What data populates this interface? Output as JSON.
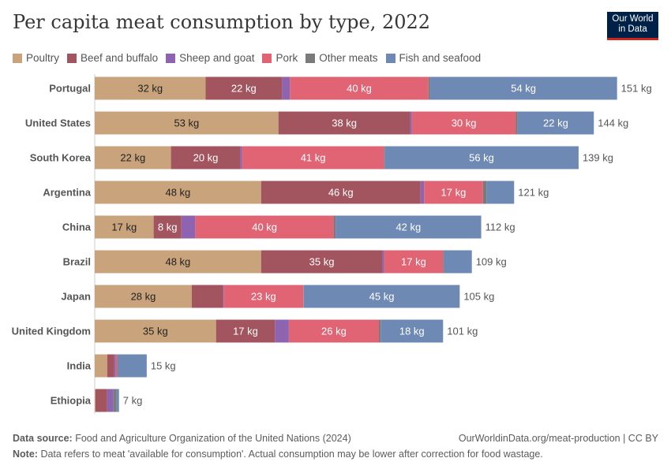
{
  "title": "Per capita meat consumption by type, 2022",
  "logo": {
    "line1": "Our World",
    "line2": "in Data"
  },
  "footer": {
    "source_label": "Data source:",
    "source": "Food and Agriculture Organization of the United Nations (2024)",
    "url": "OurWorldinData.org/meat-production | CC BY",
    "note_label": "Note:",
    "note": "Data refers to meat 'available for consumption'. Actual consumption may be lower after correction for food wastage."
  },
  "chart_data": {
    "type": "bar",
    "orientation": "horizontal",
    "stacked": true,
    "unit": "kg",
    "xlim": [
      0,
      151
    ],
    "legend_position": "top",
    "series": [
      {
        "name": "Poultry",
        "color": "#c9a37b"
      },
      {
        "name": "Beef and buffalo",
        "color": "#a2555e"
      },
      {
        "name": "Sheep and goat",
        "color": "#8e63b0"
      },
      {
        "name": "Pork",
        "color": "#e06474"
      },
      {
        "name": "Other meats",
        "color": "#7a7a7a"
      },
      {
        "name": "Fish and seafood",
        "color": "#6e89b4"
      }
    ],
    "categories": [
      "Portugal",
      "United States",
      "South Korea",
      "Argentina",
      "China",
      "Brazil",
      "Japan",
      "United Kingdom",
      "India",
      "Ethiopia"
    ],
    "values": [
      [
        32,
        22,
        2.3,
        40,
        0.4,
        54
      ],
      [
        53,
        38,
        0.5,
        30,
        0.5,
        22
      ],
      [
        22,
        20,
        0.5,
        41,
        0.1,
        56
      ],
      [
        48,
        46,
        1,
        17,
        1,
        8
      ],
      [
        17,
        8,
        4,
        40,
        0.5,
        42
      ],
      [
        48,
        35,
        0.5,
        17,
        0.3,
        8
      ],
      [
        28,
        9,
        0.2,
        23,
        0.1,
        45
      ],
      [
        35,
        17,
        4,
        26,
        0.5,
        18
      ],
      [
        3.6,
        2,
        0.5,
        0.4,
        0.1,
        8.4
      ],
      [
        0.2,
        3.4,
        1.8,
        0,
        0.9,
        0.7
      ]
    ],
    "segment_labels": [
      [
        "32 kg",
        "22 kg",
        "",
        "40 kg",
        "",
        "54 kg"
      ],
      [
        "53 kg",
        "38 kg",
        "",
        "30 kg",
        "",
        "22 kg"
      ],
      [
        "22 kg",
        "20 kg",
        "",
        "41 kg",
        "",
        "56 kg"
      ],
      [
        "48 kg",
        "46 kg",
        "",
        "17 kg",
        "",
        ""
      ],
      [
        "17 kg",
        "8 kg",
        "",
        "40 kg",
        "",
        "42 kg"
      ],
      [
        "48 kg",
        "35 kg",
        "",
        "17 kg",
        "",
        ""
      ],
      [
        "28 kg",
        "",
        "",
        "23 kg",
        "",
        "45 kg"
      ],
      [
        "35 kg",
        "17 kg",
        "",
        "26 kg",
        "",
        "18 kg"
      ],
      [
        "",
        "",
        "",
        "",
        "",
        ""
      ],
      [
        "",
        "",
        "",
        "",
        "",
        ""
      ]
    ],
    "totals": [
      "151 kg",
      "144 kg",
      "139 kg",
      "121 kg",
      "112 kg",
      "109 kg",
      "105 kg",
      "101 kg",
      "15 kg",
      "7 kg"
    ]
  }
}
